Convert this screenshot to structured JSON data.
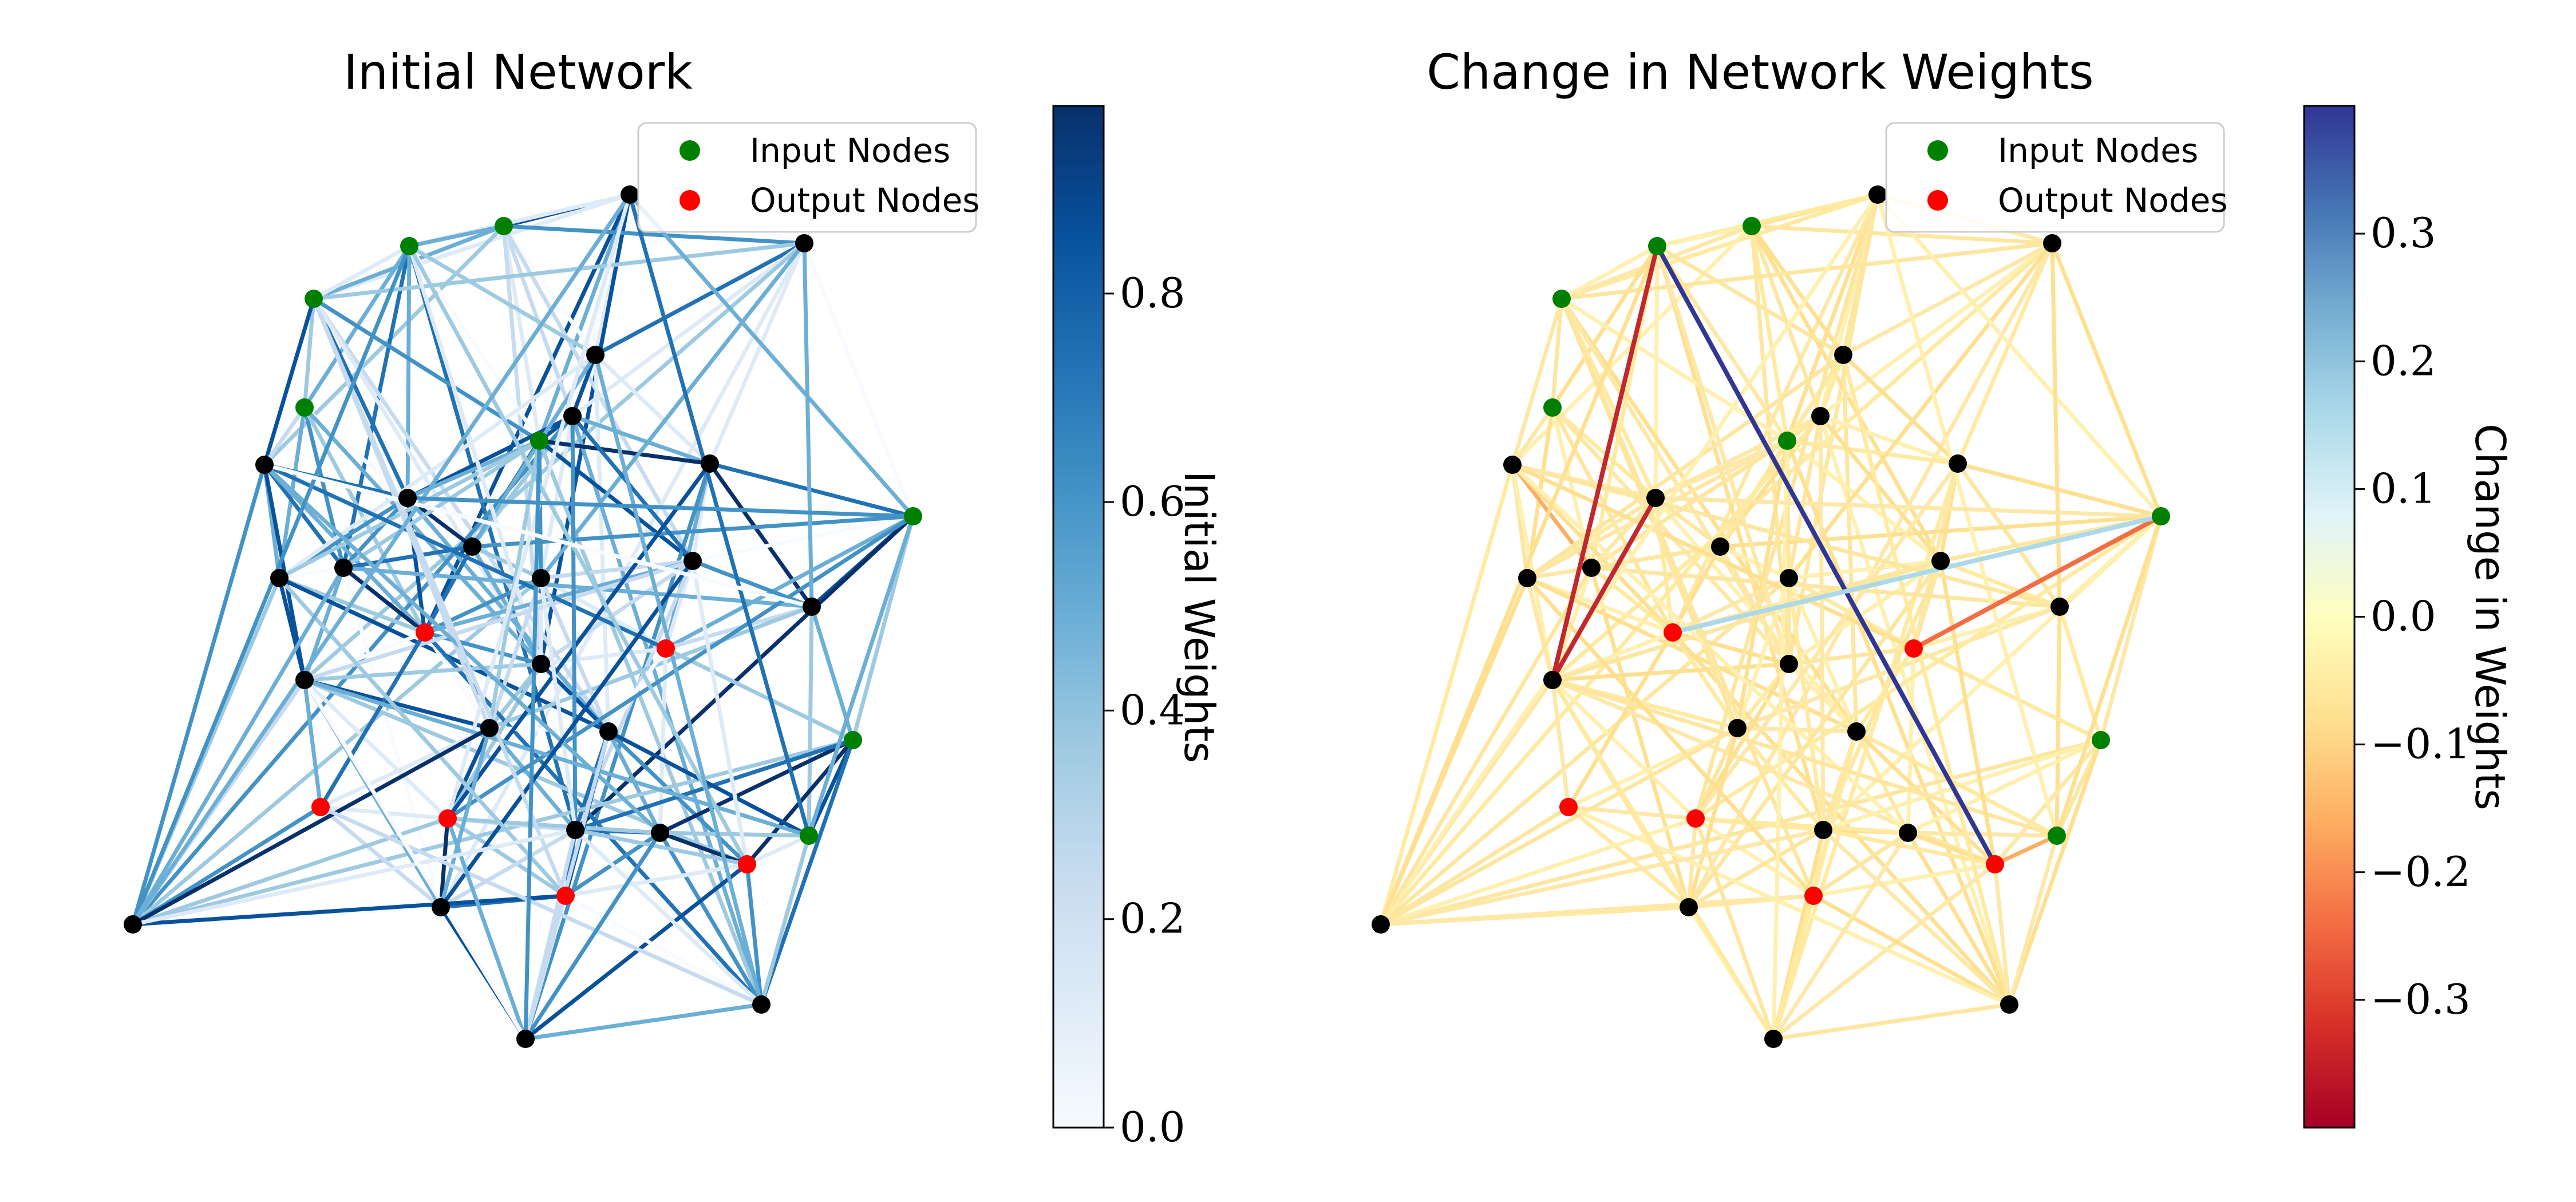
{
  "chart_data": [
    {
      "type": "network",
      "title": "Initial Network",
      "legend": {
        "placement": "top-right",
        "entries": [
          {
            "label": "Input Nodes",
            "color": "#008000"
          },
          {
            "label": "Output Nodes",
            "color": "#ff0000"
          }
        ]
      },
      "colorbar": {
        "label": "Initial Weights",
        "colormap": "Blues",
        "range": [
          0.0,
          0.98
        ],
        "ticks": [
          {
            "value": 0.0,
            "label": "0.0"
          },
          {
            "value": 0.2,
            "label": "0.2"
          },
          {
            "value": 0.4,
            "label": "0.4"
          },
          {
            "value": 0.6,
            "label": "0.6"
          },
          {
            "value": 0.8,
            "label": "0.8"
          }
        ]
      }
    },
    {
      "type": "network",
      "title": "Change in Network Weights",
      "legend": {
        "placement": "top-right",
        "entries": [
          {
            "label": "Input Nodes",
            "color": "#008000"
          },
          {
            "label": "Output Nodes",
            "color": "#ff0000"
          }
        ]
      },
      "colorbar": {
        "label": "Change in Weights",
        "colormap": "RdYlBu",
        "range": [
          -0.4,
          0.4
        ],
        "ticks": [
          {
            "value": -0.3,
            "label": "−0.3"
          },
          {
            "value": -0.2,
            "label": "−0.2"
          },
          {
            "value": -0.1,
            "label": "−0.1"
          },
          {
            "value": 0.0,
            "label": "0.0"
          },
          {
            "value": 0.1,
            "label": "0.1"
          },
          {
            "value": 0.2,
            "label": "0.2"
          },
          {
            "value": 0.3,
            "label": "0.3"
          }
        ]
      }
    }
  ]
}
